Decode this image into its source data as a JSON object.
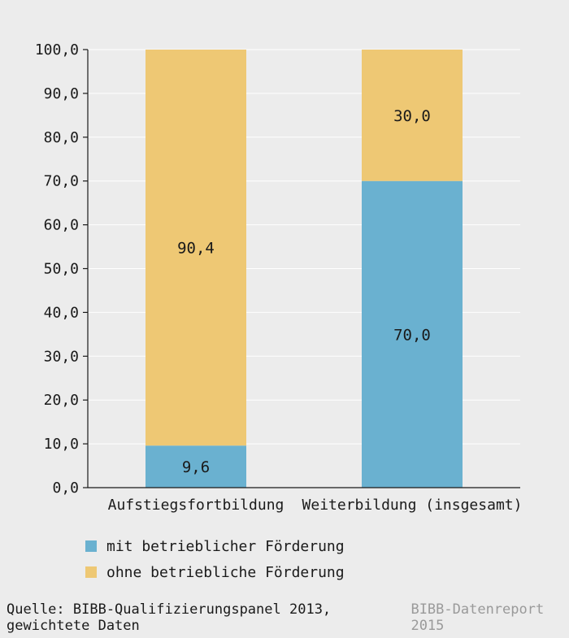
{
  "chart_data": {
    "type": "bar",
    "stacked": true,
    "categories": [
      "Aufstiegsfortbildung",
      "Weiterbildung (insgesamt)"
    ],
    "series": [
      {
        "name": "mit betrieblicher Förderung",
        "values": [
          9.6,
          70.0
        ],
        "labels": [
          "9,6",
          "70,0"
        ],
        "color": "#6ab1d0"
      },
      {
        "name": "ohne betriebliche Förderung",
        "values": [
          90.4,
          30.0
        ],
        "labels": [
          "90,4",
          "30,0"
        ],
        "color": "#eec874"
      }
    ],
    "ylim": [
      0,
      100
    ],
    "yticks": [
      0,
      10,
      20,
      30,
      40,
      50,
      60,
      70,
      80,
      90,
      100
    ],
    "ytick_labels": [
      "0,0",
      "10,0",
      "20,0",
      "30,0",
      "40,0",
      "50,0",
      "60,0",
      "70,0",
      "80,0",
      "90,0",
      "100,0"
    ],
    "grid": true,
    "legend_position": "bottom-left",
    "title": "",
    "xlabel": "",
    "ylabel": ""
  },
  "colors": {
    "background": "#ececec",
    "gridline": "#ffffff",
    "axis": "#1a1a1a"
  },
  "footer": {
    "source": "Quelle: BIBB-Qualifizierungspanel 2013, gewichtete Daten",
    "brand": "BIBB-Datenreport 2015"
  }
}
